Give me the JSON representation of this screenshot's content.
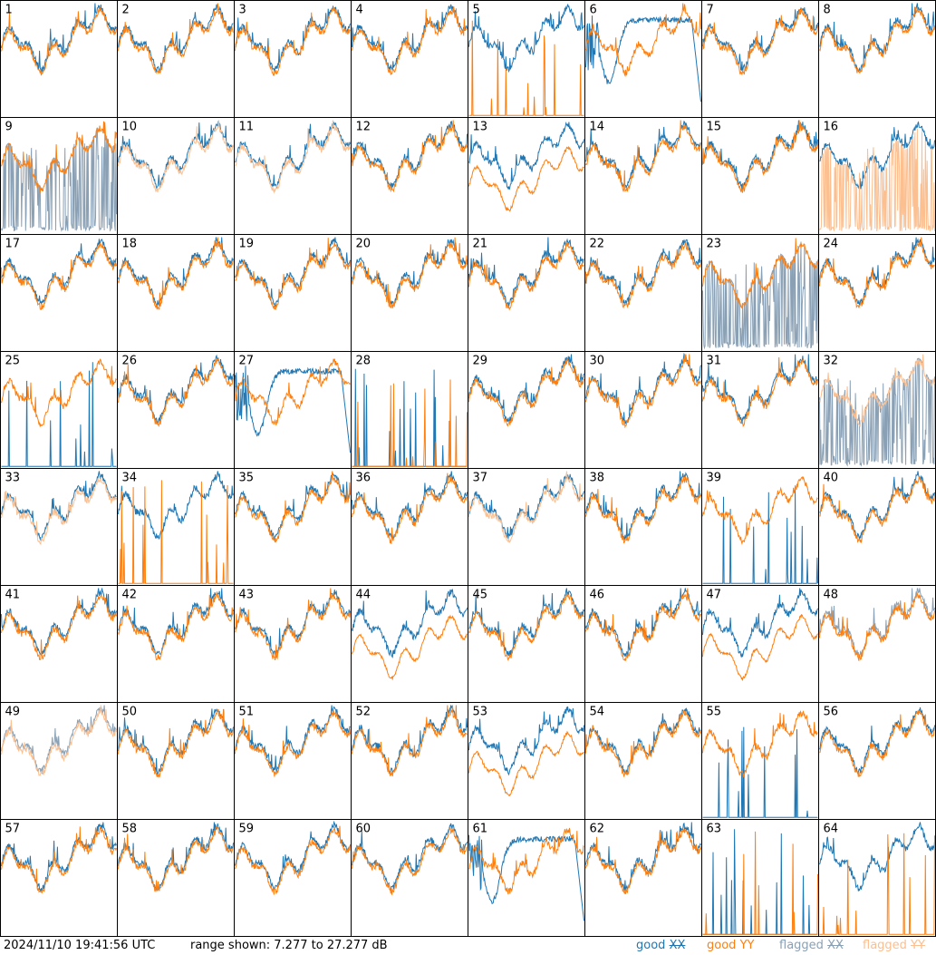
{
  "chart_data": {
    "type": "line",
    "layout": "small-multiples 8x8",
    "panels": [
      "1",
      "2",
      "3",
      "4",
      "5",
      "6",
      "7",
      "8",
      "9",
      "10",
      "11",
      "12",
      "13",
      "14",
      "15",
      "16",
      "17",
      "18",
      "19",
      "20",
      "21",
      "22",
      "23",
      "24",
      "25",
      "26",
      "27",
      "28",
      "29",
      "30",
      "31",
      "32",
      "33",
      "34",
      "35",
      "36",
      "37",
      "38",
      "39",
      "40",
      "41",
      "42",
      "43",
      "44",
      "45",
      "46",
      "47",
      "48",
      "49",
      "50",
      "51",
      "52",
      "53",
      "54",
      "55",
      "56",
      "57",
      "58",
      "59",
      "60",
      "61",
      "62",
      "63",
      "64"
    ],
    "ylim_db": [
      7.277,
      27.277
    ],
    "series": [
      {
        "name": "good XX",
        "color": "#1f77b4"
      },
      {
        "name": "good YY",
        "color": "#ff7f0e"
      },
      {
        "name": "flagged XX",
        "color": "#8aa0b4"
      },
      {
        "name": "flagged YY",
        "color": "#fcbf8f"
      }
    ],
    "panel_status": {
      "5": {
        "xx": "good",
        "yy": "spiky-low"
      },
      "6": {
        "xx": "dip",
        "yy": "good"
      },
      "9": {
        "xx": "flagged-spiky",
        "yy": "good"
      },
      "10": {
        "xx": "good",
        "yy": "flagged"
      },
      "11": {
        "xx": "good",
        "yy": "flagged"
      },
      "13": {
        "xx": "good",
        "yy": "droop"
      },
      "16": {
        "xx": "good",
        "yy": "flagged-spiky"
      },
      "23": {
        "xx": "flagged-spiky",
        "yy": "good"
      },
      "25": {
        "xx": "spiky-low",
        "yy": "good"
      },
      "27": {
        "xx": "dip",
        "yy": "good"
      },
      "28": {
        "xx": "spiky-low",
        "yy": "spiky-low"
      },
      "32": {
        "xx": "flagged-spiky",
        "yy": "flagged"
      },
      "33": {
        "xx": "good",
        "yy": "flagged"
      },
      "34": {
        "xx": "good",
        "yy": "spiky-low"
      },
      "37": {
        "xx": "good",
        "yy": "flagged"
      },
      "39": {
        "xx": "spiky-low",
        "yy": "good"
      },
      "44": {
        "xx": "good",
        "yy": "droop"
      },
      "47": {
        "xx": "good",
        "yy": "droop"
      },
      "48": {
        "xx": "flagged",
        "yy": "good"
      },
      "49": {
        "xx": "flagged",
        "yy": "flagged"
      },
      "53": {
        "xx": "good",
        "yy": "droop"
      },
      "55": {
        "xx": "spiky-low",
        "yy": "good"
      },
      "61": {
        "xx": "dip",
        "yy": "good"
      },
      "63": {
        "xx": "spiky-low",
        "yy": "spiky-low"
      },
      "64": {
        "xx": "good",
        "yy": "spiky-low"
      }
    }
  },
  "footer": {
    "timestamp": "2024/11/10 19:41:56 UTC",
    "range": "range shown: 7.277 to 27.277 dB",
    "legend_good": "good",
    "legend_flagged": "flagged",
    "pol_xx": "XX",
    "pol_yy": "YY"
  }
}
